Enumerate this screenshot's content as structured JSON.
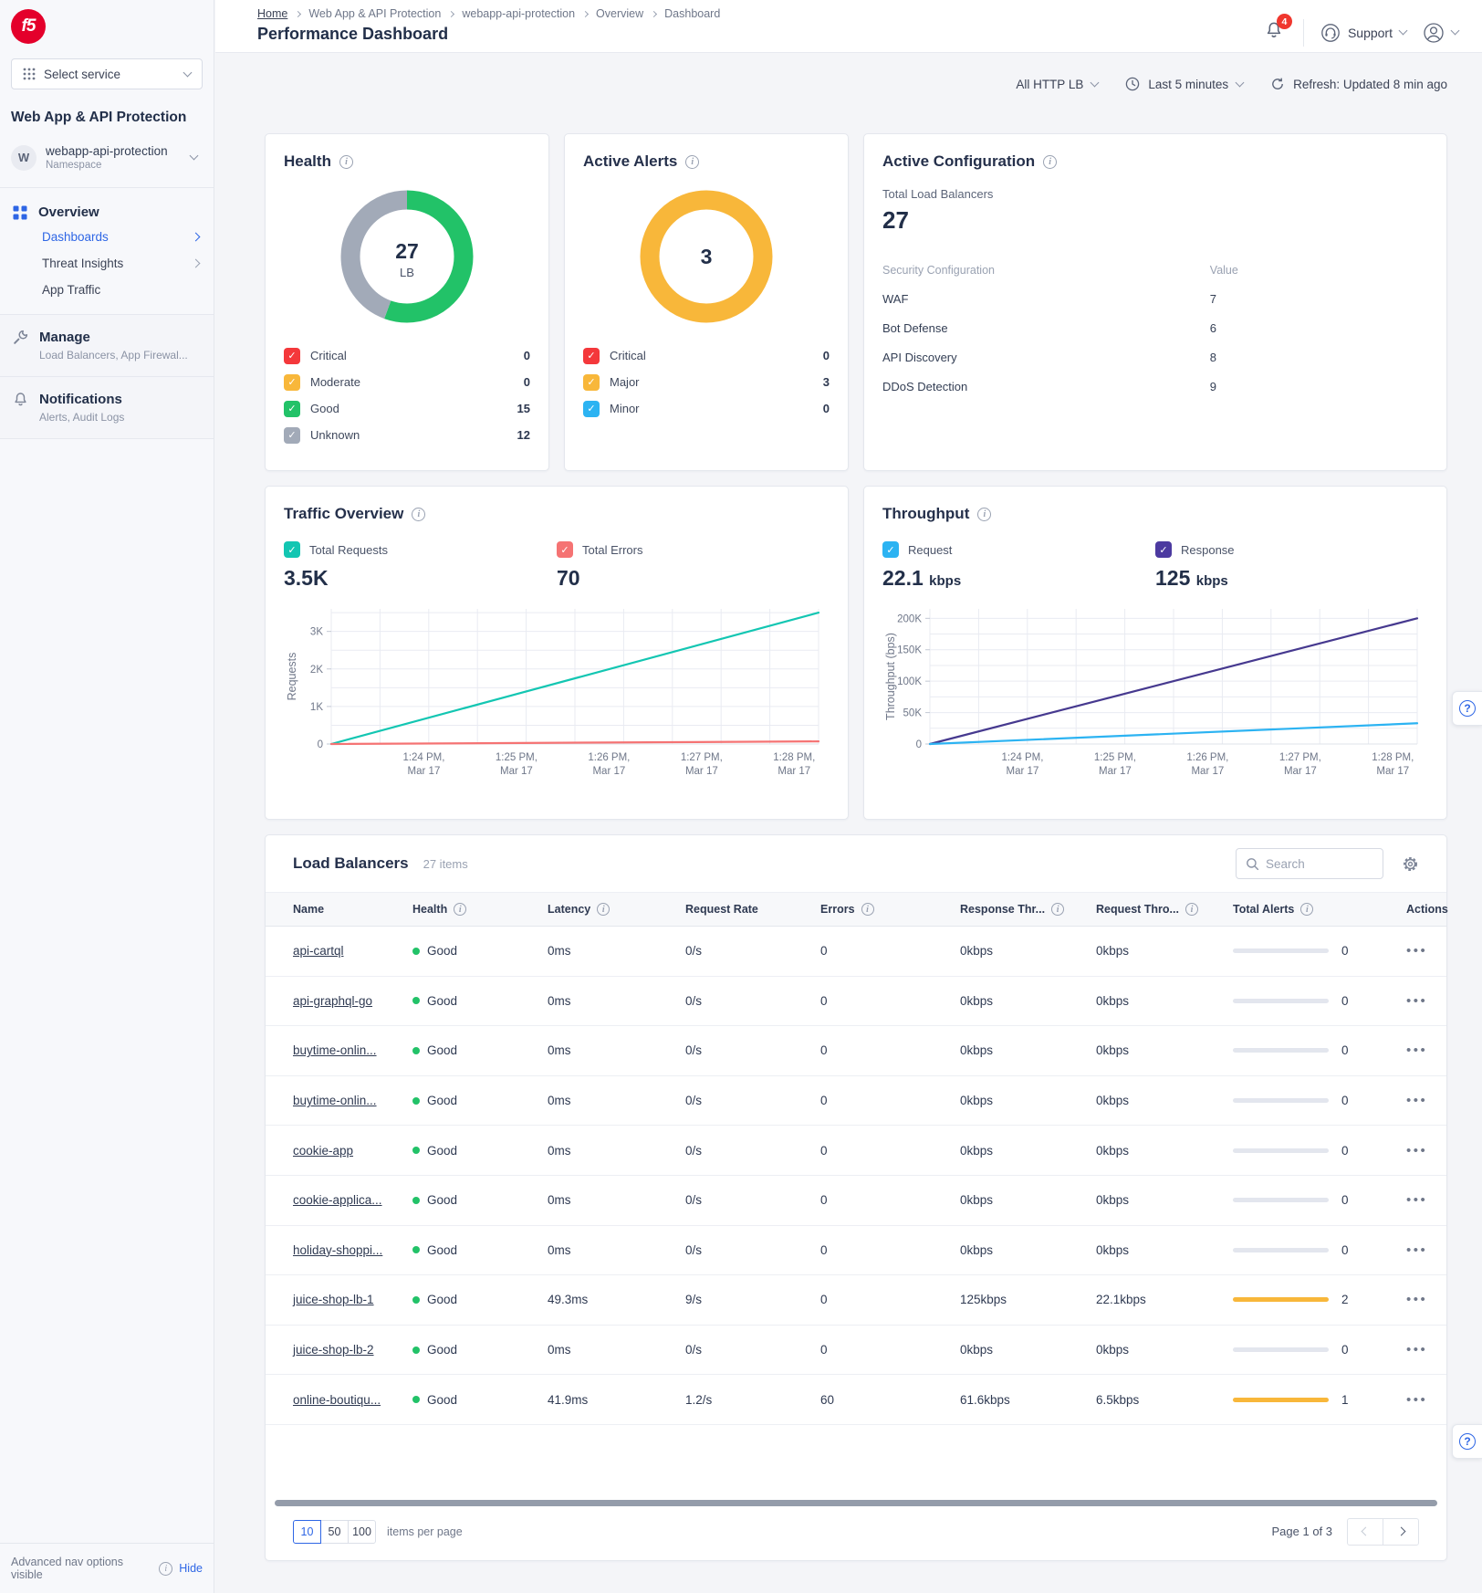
{
  "sidebar": {
    "logo_text": "f5",
    "select_service_label": "Select service",
    "product_title": "Web App & API Protection",
    "namespace": {
      "initial": "W",
      "name": "webapp-api-protection",
      "type": "Namespace"
    },
    "overview": {
      "label": "Overview",
      "items": [
        "Dashboards",
        "Threat Insights",
        "App Traffic"
      ]
    },
    "manage": {
      "label": "Manage",
      "sublabel": "Load Balancers, App Firewal..."
    },
    "notifications": {
      "label": "Notifications",
      "sublabel": "Alerts, Audit Logs"
    },
    "footer": {
      "text": "Advanced nav options visible",
      "action": "Hide"
    }
  },
  "header": {
    "breadcrumb": [
      "Home",
      "Web App & API Protection",
      "webapp-api-protection",
      "Overview",
      "Dashboard"
    ],
    "title": "Performance Dashboard",
    "notification_badge": "4",
    "support_label": "Support"
  },
  "toolbar": {
    "lb_filter": "All HTTP LB",
    "time_range": "Last 5 minutes",
    "refresh_label": "Refresh: Updated 8 min ago"
  },
  "active_config": {
    "title": "Active Configuration",
    "total_label": "Total Load Balancers",
    "total_value": "27",
    "col1": "Security Configuration",
    "col2": "Value",
    "rows": [
      {
        "label": "WAF",
        "value": "7"
      },
      {
        "label": "Bot Defense",
        "value": "6"
      },
      {
        "label": "API Discovery",
        "value": "8"
      },
      {
        "label": "DDoS Detection",
        "value": "9"
      }
    ]
  },
  "chart_data": [
    {
      "id": "health-donut",
      "type": "donut",
      "title": "Health",
      "center": {
        "value": "27",
        "label": "LB"
      },
      "legend": [
        {
          "label": "Critical",
          "value": "0",
          "color": "#f4383b"
        },
        {
          "label": "Moderate",
          "value": "0",
          "color": "#f8b73a"
        },
        {
          "label": "Good",
          "value": "15",
          "color": "#22c268"
        },
        {
          "label": "Unknown",
          "value": "12",
          "color": "#a2aab8"
        }
      ],
      "slices": [
        {
          "label": "Good",
          "value": 15,
          "color": "#22c268"
        },
        {
          "label": "Unknown",
          "value": 12,
          "color": "#a2aab8"
        }
      ]
    },
    {
      "id": "alerts-donut",
      "type": "donut",
      "title": "Active Alerts",
      "center": {
        "value": "3",
        "label": ""
      },
      "legend": [
        {
          "label": "Critical",
          "value": "0",
          "color": "#f4383b"
        },
        {
          "label": "Major",
          "value": "3",
          "color": "#f8b73a"
        },
        {
          "label": "Minor",
          "value": "0",
          "color": "#2cb3f2"
        }
      ],
      "slices": [
        {
          "label": "Major",
          "value": 3,
          "color": "#f8b73a"
        }
      ]
    },
    {
      "id": "traffic",
      "type": "line",
      "title": "Traffic Overview",
      "ylabel": "Requests",
      "ylim": [
        0,
        3600
      ],
      "stats": [
        {
          "label": "Total Requests",
          "value": "3.5K",
          "unit": "",
          "color": "#13c6b2"
        },
        {
          "label": "Total Errors",
          "value": "70",
          "unit": "",
          "color": "#f57373"
        }
      ],
      "yticks": [
        {
          "v": 0,
          "label": "0"
        },
        {
          "v": 1000,
          "label": "1K"
        },
        {
          "v": 2000,
          "label": "2K"
        },
        {
          "v": 3000,
          "label": "3K"
        }
      ],
      "ygrid": [
        500,
        1000,
        1500,
        2000,
        2500,
        3000,
        3500
      ],
      "xticks": [
        {
          "pos": 0.19,
          "line1": "1:24 PM,",
          "line2": "Mar 17"
        },
        {
          "pos": 0.38,
          "line1": "1:25 PM,",
          "line2": "Mar 17"
        },
        {
          "pos": 0.57,
          "line1": "1:26 PM,",
          "line2": "Mar 17"
        },
        {
          "pos": 0.76,
          "line1": "1:27 PM,",
          "line2": "Mar 17"
        },
        {
          "pos": 0.95,
          "line1": "1:28 PM,",
          "line2": "Mar 17"
        }
      ],
      "series": [
        {
          "name": "Total Requests",
          "color": "#13c6b2",
          "x": [
            0,
            1
          ],
          "y": [
            0,
            3500
          ]
        },
        {
          "name": "Total Errors",
          "color": "#f57373",
          "x": [
            0,
            1
          ],
          "y": [
            0,
            70
          ]
        }
      ]
    },
    {
      "id": "throughput",
      "type": "line",
      "title": "Throughput",
      "ylabel": "Throughput (bps)",
      "ylim": [
        0,
        215000
      ],
      "stats": [
        {
          "label": "Request",
          "value": "22.1",
          "unit": "kbps",
          "color": "#2cb3f2"
        },
        {
          "label": "Response",
          "value": "125",
          "unit": "kbps",
          "color": "#4c3aa0"
        }
      ],
      "yticks": [
        {
          "v": 0,
          "label": "0"
        },
        {
          "v": 50000,
          "label": "50K"
        },
        {
          "v": 100000,
          "label": "100K"
        },
        {
          "v": 150000,
          "label": "150K"
        },
        {
          "v": 200000,
          "label": "200K"
        }
      ],
      "ygrid": [
        25000,
        50000,
        75000,
        100000,
        125000,
        150000,
        175000,
        200000
      ],
      "xticks": [
        {
          "pos": 0.19,
          "line1": "1:24 PM,",
          "line2": "Mar 17"
        },
        {
          "pos": 0.38,
          "line1": "1:25 PM,",
          "line2": "Mar 17"
        },
        {
          "pos": 0.57,
          "line1": "1:26 PM,",
          "line2": "Mar 17"
        },
        {
          "pos": 0.76,
          "line1": "1:27 PM,",
          "line2": "Mar 17"
        },
        {
          "pos": 0.95,
          "line1": "1:28 PM,",
          "line2": "Mar 17"
        }
      ],
      "series": [
        {
          "name": "Response",
          "color": "#46398f",
          "x": [
            0,
            1
          ],
          "y": [
            0,
            200000
          ]
        },
        {
          "name": "Request",
          "color": "#2cb3f2",
          "x": [
            0,
            1
          ],
          "y": [
            0,
            33000
          ]
        }
      ]
    }
  ],
  "load_balancers": {
    "title": "Load Balancers",
    "count_label": "27 items",
    "search_placeholder": "Search",
    "columns": [
      {
        "label": "Name",
        "info": false
      },
      {
        "label": "Health",
        "info": true
      },
      {
        "label": "Latency",
        "info": true
      },
      {
        "label": "Request Rate",
        "info": false
      },
      {
        "label": "Errors",
        "info": true
      },
      {
        "label": "Response Thr...",
        "info": true
      },
      {
        "label": "Request Thro...",
        "info": true
      },
      {
        "label": "Total Alerts",
        "info": true
      },
      {
        "label": "Actions",
        "info": false
      }
    ],
    "rows": [
      {
        "name": "api-cartql",
        "health": "Good",
        "latency": "0ms",
        "rate": "0/s",
        "errors": "0",
        "resp_thr": "0kbps",
        "req_thr": "0kbps",
        "alerts": "0",
        "alert_level": "none"
      },
      {
        "name": "api-graphql-go",
        "health": "Good",
        "latency": "0ms",
        "rate": "0/s",
        "errors": "0",
        "resp_thr": "0kbps",
        "req_thr": "0kbps",
        "alerts": "0",
        "alert_level": "none"
      },
      {
        "name": "buytime-onlin...",
        "health": "Good",
        "latency": "0ms",
        "rate": "0/s",
        "errors": "0",
        "resp_thr": "0kbps",
        "req_thr": "0kbps",
        "alerts": "0",
        "alert_level": "none"
      },
      {
        "name": "buytime-onlin...",
        "health": "Good",
        "latency": "0ms",
        "rate": "0/s",
        "errors": "0",
        "resp_thr": "0kbps",
        "req_thr": "0kbps",
        "alerts": "0",
        "alert_level": "none"
      },
      {
        "name": "cookie-app",
        "health": "Good",
        "latency": "0ms",
        "rate": "0/s",
        "errors": "0",
        "resp_thr": "0kbps",
        "req_thr": "0kbps",
        "alerts": "0",
        "alert_level": "none"
      },
      {
        "name": "cookie-applica...",
        "health": "Good",
        "latency": "0ms",
        "rate": "0/s",
        "errors": "0",
        "resp_thr": "0kbps",
        "req_thr": "0kbps",
        "alerts": "0",
        "alert_level": "none"
      },
      {
        "name": "holiday-shoppi...",
        "health": "Good",
        "latency": "0ms",
        "rate": "0/s",
        "errors": "0",
        "resp_thr": "0kbps",
        "req_thr": "0kbps",
        "alerts": "0",
        "alert_level": "none"
      },
      {
        "name": "juice-shop-lb-1",
        "health": "Good",
        "latency": "49.3ms",
        "rate": "9/s",
        "errors": "0",
        "resp_thr": "125kbps",
        "req_thr": "22.1kbps",
        "alerts": "2",
        "alert_level": "warning"
      },
      {
        "name": "juice-shop-lb-2",
        "health": "Good",
        "latency": "0ms",
        "rate": "0/s",
        "errors": "0",
        "resp_thr": "0kbps",
        "req_thr": "0kbps",
        "alerts": "0",
        "alert_level": "none"
      },
      {
        "name": "online-boutiqu...",
        "health": "Good",
        "latency": "41.9ms",
        "rate": "1.2/s",
        "errors": "60",
        "resp_thr": "61.6kbps",
        "req_thr": "6.5kbps",
        "alerts": "1",
        "alert_level": "warning"
      }
    ]
  },
  "pagination": {
    "sizes": [
      "10",
      "50",
      "100"
    ],
    "active_size": "10",
    "items_per_page_label": "items per page",
    "page_info": "Page 1 of 3"
  },
  "colors": {
    "accent_blue": "#2e66e5",
    "good_green": "#22c268",
    "warn_orange": "#f8b73a",
    "critical_red": "#f4383b",
    "teal": "#13c6b2",
    "salmon": "#f57373",
    "sky_blue": "#2cb3f2",
    "indigo": "#46398f",
    "unknown_gray": "#a2aab8"
  }
}
